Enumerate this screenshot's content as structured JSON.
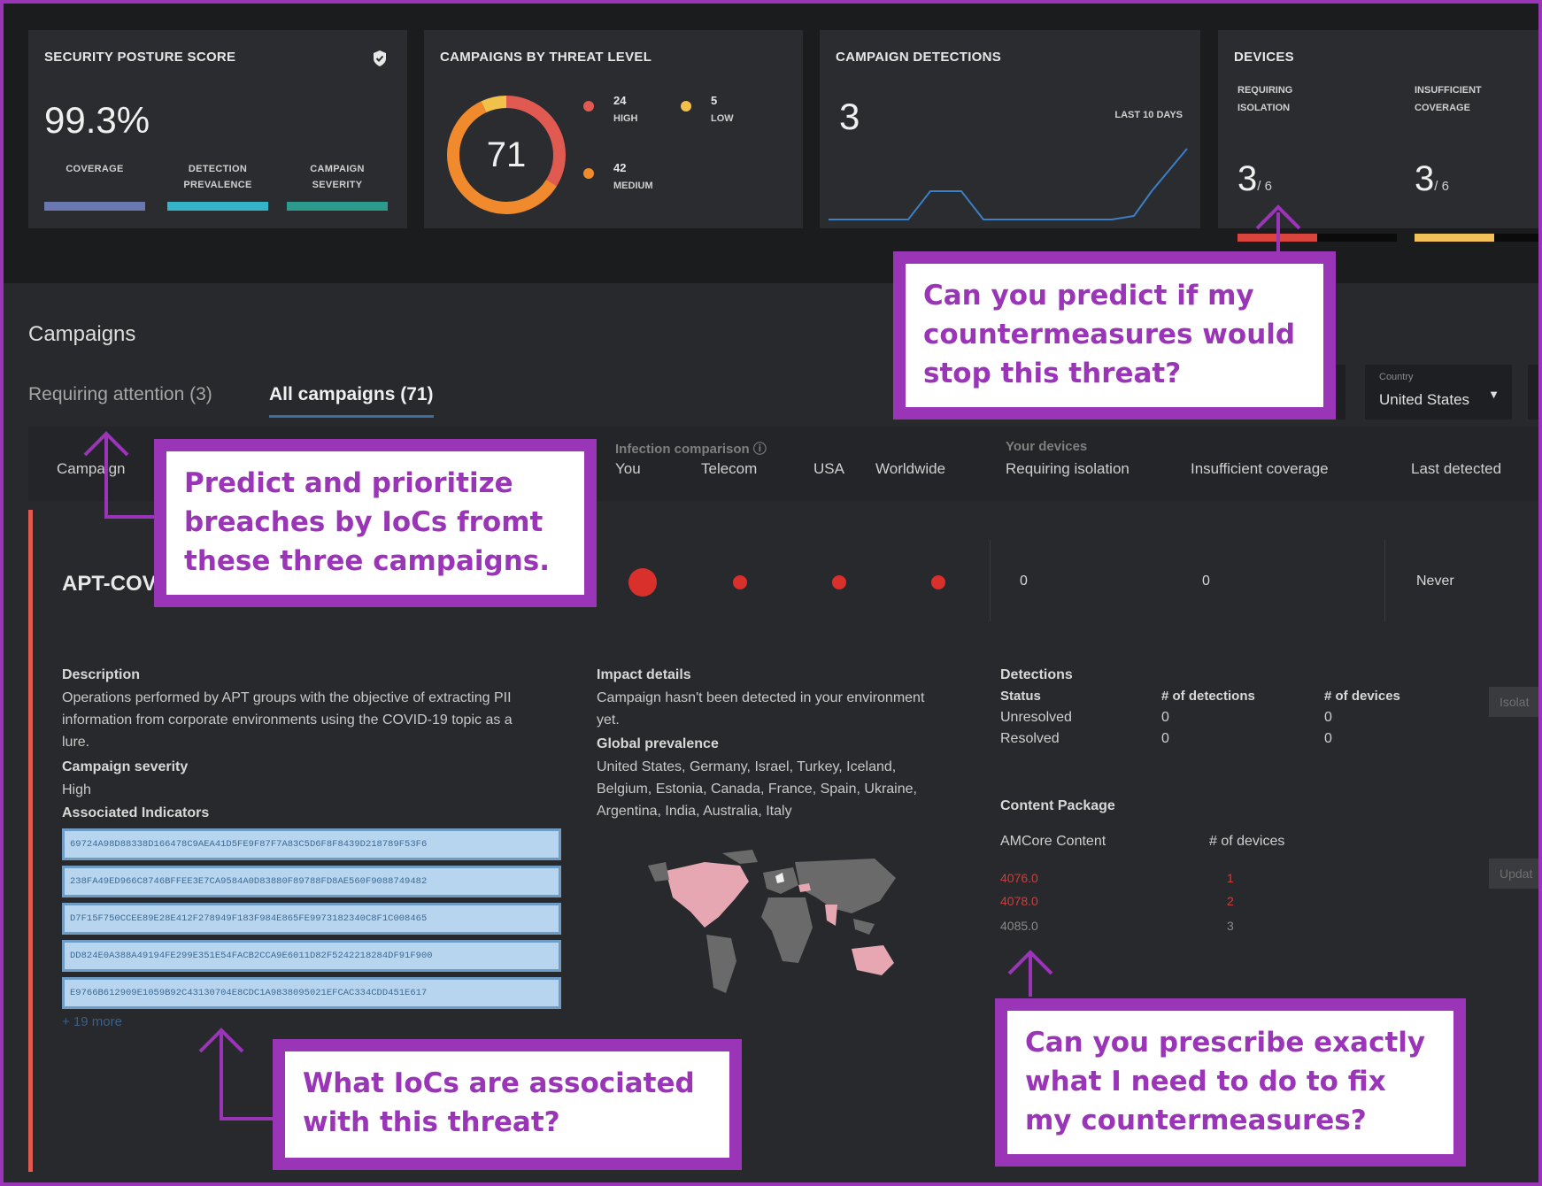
{
  "posture": {
    "title": "SECURITY POSTURE SCORE",
    "score": "99.3%",
    "metrics": [
      {
        "label": "COVERAGE",
        "color": "#6a78b0"
      },
      {
        "label": "DETECTION PREVALENCE",
        "color": "#35b3c8"
      },
      {
        "label": "CAMPAIGN SEVERITY",
        "color": "#2c9a8c"
      }
    ]
  },
  "threat": {
    "title": "CAMPAIGNS BY THREAT LEVEL",
    "total": "71",
    "legend": [
      {
        "count": "24",
        "label": "HIGH",
        "color": "#e05a52"
      },
      {
        "count": "5",
        "label": "LOW",
        "color": "#f2c14a"
      },
      {
        "count": "42",
        "label": "MEDIUM",
        "color": "#f08a2c"
      }
    ]
  },
  "detections": {
    "title": "CAMPAIGN DETECTIONS",
    "count": "3",
    "range": "LAST 10 DAYS",
    "line_color": "#3b7fc4"
  },
  "devices": {
    "title": "DEVICES",
    "items": [
      {
        "label": "REQUIRING ISOLATION",
        "value": "3",
        "of": "/ 6",
        "fraction": 0.5,
        "color": "#d9443c"
      },
      {
        "label": "INSUFFICIENT COVERAGE",
        "value": "3",
        "of": "/ 6",
        "fraction": 0.5,
        "color": "#f3c05a"
      }
    ]
  },
  "campaigns": {
    "title": "Campaigns",
    "tabs": [
      {
        "label": "Requiring attention (3)"
      },
      {
        "label": "All campaigns (71)"
      }
    ],
    "country_filter": {
      "label": "Country",
      "value": "United States"
    },
    "headers": {
      "campaign": "Campaign",
      "infection_group": "Infection comparison",
      "you": "You",
      "telecom": "Telecom",
      "usa": "USA",
      "worldwide": "Worldwide",
      "devices_group": "Your devices",
      "requiring_isolation": "Requiring isolation",
      "insufficient_coverage": "Insufficient coverage",
      "last_detected": "Last detected"
    },
    "row": {
      "name": "APT-COVI",
      "requiring_isolation": "0",
      "insufficient_coverage": "0",
      "last_detected": "Never"
    }
  },
  "details": {
    "description_title": "Description",
    "description_lines": [
      "Operations performed by APT groups with the objective of extracting PII",
      "information from corporate environments using the COVID-19 topic as a",
      "lure."
    ],
    "severity_title": "Campaign severity",
    "severity_value": "High",
    "indicators_title": "Associated Indicators",
    "indicators": [
      "69724A98D88338D166478C9AEA41D5FE9F87F7A83C5D6F8F8439D218789F53F6",
      "238FA49ED966C8746BFFEE3E7CA9584A0D83880F89788FD8AE560F9088749482",
      "D7F15F750CCEE89E28E412F278949F183F984E865FE99731823​40C8F1C008465",
      "DD824E0A388A49194FE299E351E54FACB2CCA9E6011D82F5242218284DF91F900",
      "E9766B612909E1059B92C431307​04E8CDC1A9838095021EFCAC334CDD451E617"
    ],
    "more_link": "+ 19 more",
    "impact_title": "Impact details",
    "impact_lines": [
      "Campaign hasn't been detected in your environment",
      "yet."
    ],
    "prevalence_title": "Global prevalence",
    "prevalence_lines": [
      "United States, Germany, Israel, Turkey, Iceland,",
      "Belgium, Estonia, Canada, France, Spain, Ukraine,",
      "Argentina, India, Australia, Italy"
    ],
    "detections_title": "Detections",
    "det_headers": {
      "status": "Status",
      "detections": "# of detections",
      "devices": "# of devices"
    },
    "det_rows": [
      {
        "status": "Unresolved",
        "detections": "0",
        "devices": "0"
      },
      {
        "status": "Resolved",
        "detections": "0",
        "devices": "0"
      }
    ],
    "content_title": "Content Package",
    "content_headers": {
      "content": "AMCore Content",
      "devices": "# of devices"
    },
    "content_rows": [
      {
        "content": "4076.0",
        "devices": "1"
      },
      {
        "content": "4078.0",
        "devices": "2"
      },
      {
        "content": "4085.0",
        "devices": "3"
      }
    ],
    "side_buttons": [
      "Isolat",
      "Updat"
    ]
  },
  "callouts": {
    "predict": [
      "Can you predict if my",
      "countermeasures would",
      "stop this threat?"
    ],
    "prioritize": [
      "Predict and prioritize",
      "breaches by IoCs fromt",
      "these three campaigns."
    ],
    "iocs": [
      "What IoCs are associated",
      "with this threat?"
    ],
    "prescribe": [
      "Can you prescribe exactly",
      "what I need to do to fix",
      "my countermeasures?"
    ],
    "color": "#9a35b8"
  }
}
